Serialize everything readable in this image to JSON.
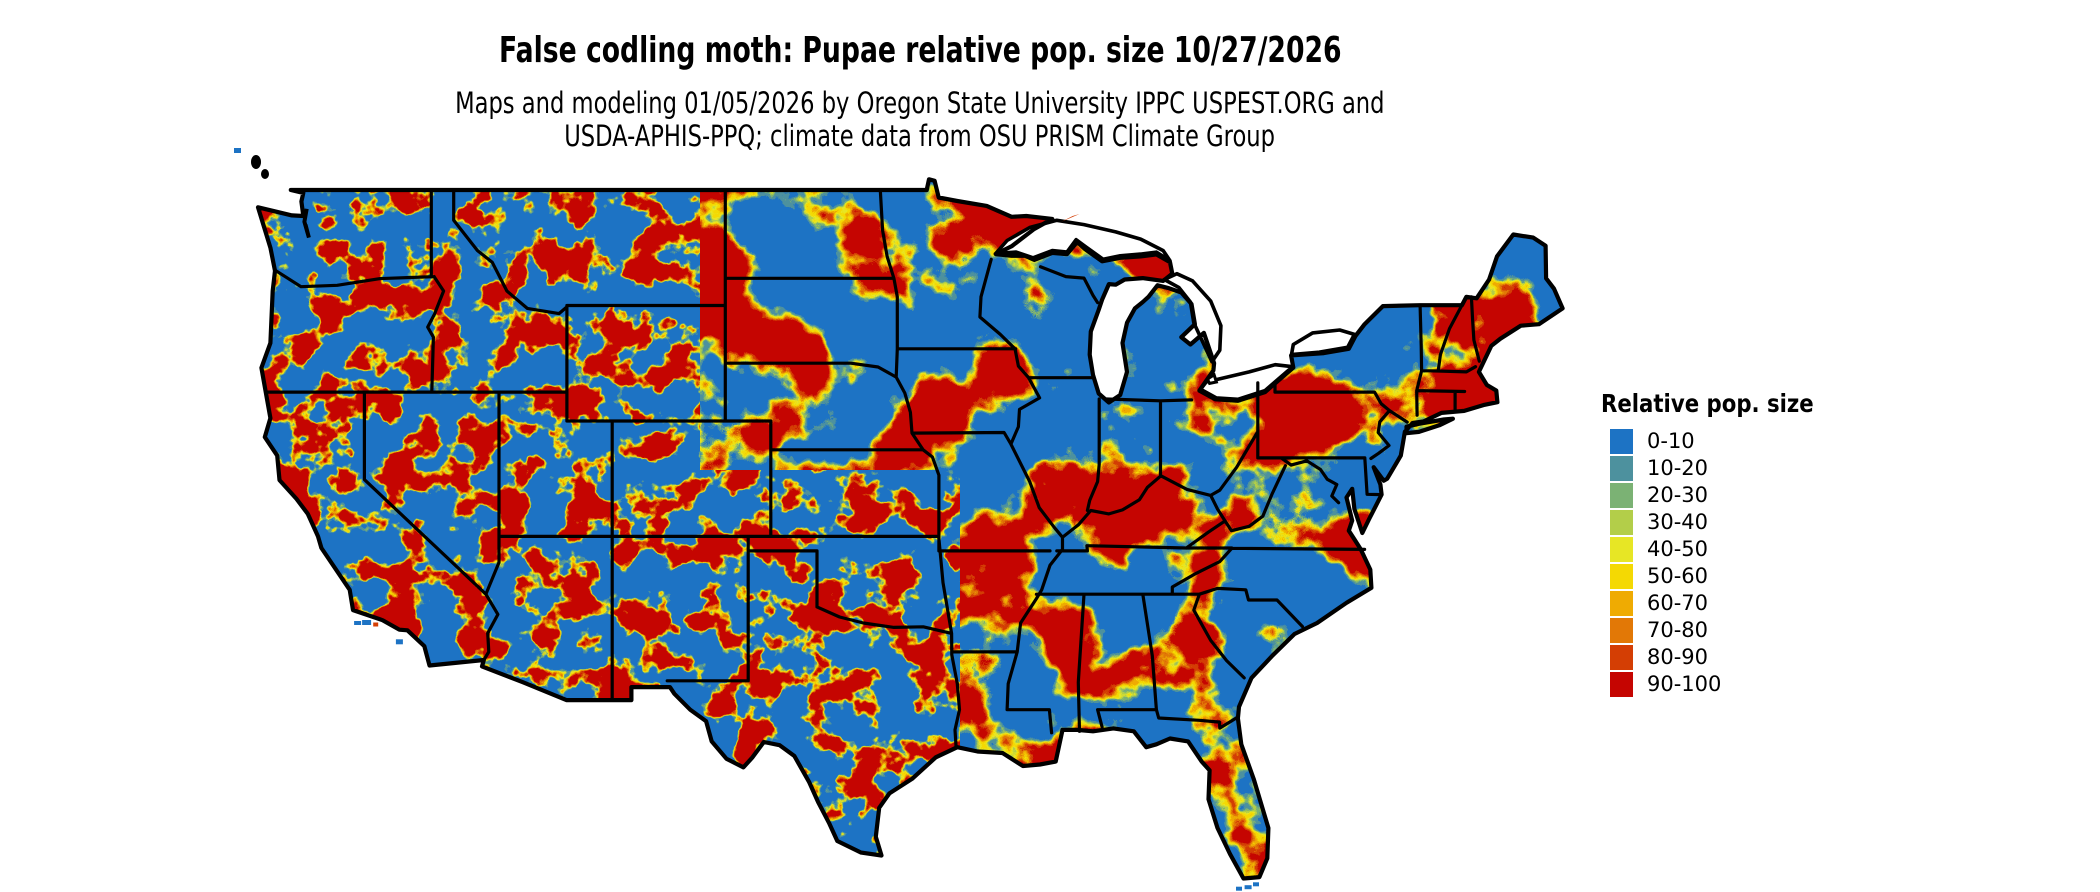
{
  "header": {
    "title": "False codling moth: Pupae relative pop. size 10/27/2026",
    "subtitle_line1": "Maps and modeling 01/05/2026 by Oregon State University IPPC USPEST.ORG and",
    "subtitle_line2": "USDA-APHIS-PPQ; climate data from OSU PRISM Climate Group"
  },
  "legend": {
    "title": "Relative pop. size",
    "entries": [
      {
        "label": "0-10",
        "color": "#1D73C4"
      },
      {
        "label": "10-20",
        "color": "#4D919E"
      },
      {
        "label": "20-30",
        "color": "#7BB274"
      },
      {
        "label": "30-40",
        "color": "#B3CE49"
      },
      {
        "label": "40-50",
        "color": "#E7E625"
      },
      {
        "label": "50-60",
        "color": "#F4D903"
      },
      {
        "label": "60-70",
        "color": "#EFAB02"
      },
      {
        "label": "70-80",
        "color": "#E27806"
      },
      {
        "label": "80-90",
        "color": "#D43E04"
      },
      {
        "label": "90-100",
        "color": "#C50501"
      }
    ]
  },
  "map": {
    "region": "contiguous United States",
    "style": "raster population-size classes with state borders",
    "border_color": "#000000",
    "water_and_nodata_color": "#FFFFFF"
  }
}
